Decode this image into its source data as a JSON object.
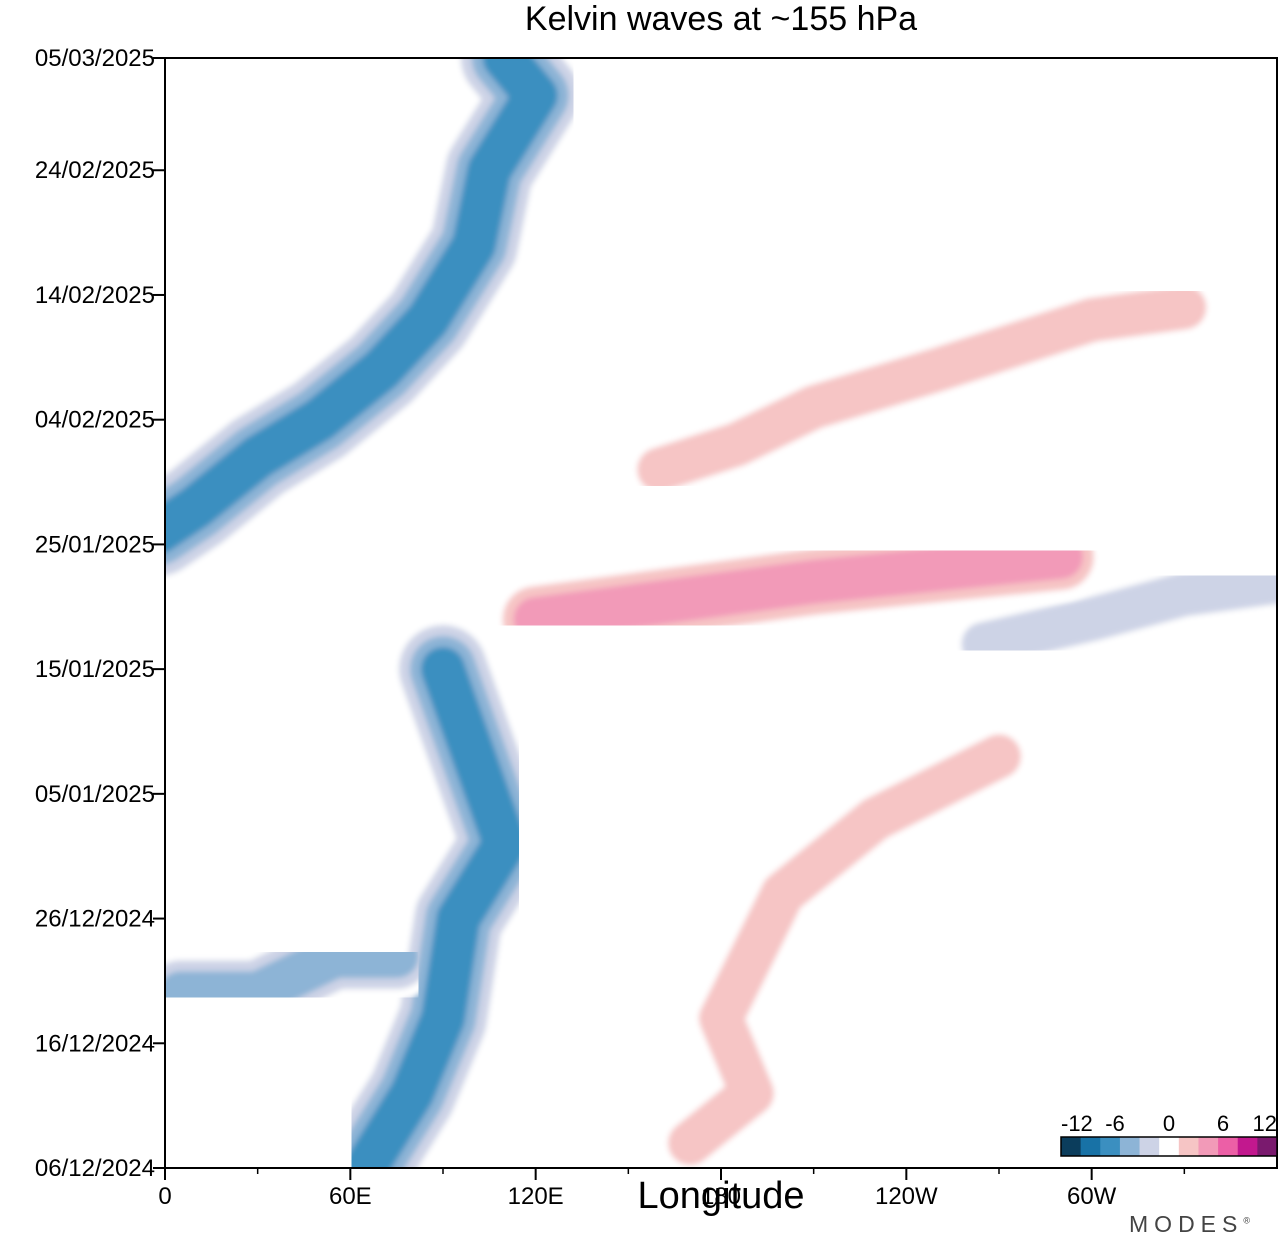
{
  "chart_data": {
    "type": "heatmap",
    "title": "Kelvin waves at ~155 hPa",
    "xlabel": "Longitude",
    "ylabel": "",
    "x_ticks": [
      "0",
      "60E",
      "120E",
      "180",
      "120W",
      "60W"
    ],
    "x_tick_values": [
      0,
      60,
      120,
      180,
      240,
      300
    ],
    "xlim": [
      0,
      360
    ],
    "y_ticks": [
      "05/03/2025",
      "24/02/2025",
      "14/02/2025",
      "04/02/2025",
      "25/01/2025",
      "15/01/2025",
      "05/01/2025",
      "26/12/2024",
      "16/12/2024",
      "06/12/2024"
    ],
    "y_tick_days": [
      89,
      80,
      70,
      60,
      50,
      40,
      30,
      20,
      10,
      0
    ],
    "ylim_days": [
      0,
      89
    ],
    "colorbar": {
      "tick_labels": [
        "-12",
        "-6",
        "0",
        "6",
        "12"
      ],
      "tick_values": [
        -12,
        -6,
        0,
        6,
        12
      ],
      "levels": [
        -12,
        -10,
        -8,
        -6,
        -4,
        -2,
        2,
        4,
        6,
        8,
        10,
        12
      ],
      "colors": [
        "#0b3d5c",
        "#1872a6",
        "#3b8fc0",
        "#8db4d6",
        "#cdd3e6",
        "#ffffff",
        "#f6c5c5",
        "#f29ab8",
        "#ec5fa6",
        "#c2188e",
        "#7a1a6e"
      ]
    },
    "features": [
      {
        "name": "negative",
        "value": -8,
        "points": [
          [
            -2,
            51
          ],
          [
            10,
            53
          ],
          [
            30,
            57
          ],
          [
            50,
            60
          ],
          [
            70,
            64
          ],
          [
            85,
            68
          ],
          [
            100,
            74
          ],
          [
            105,
            80
          ],
          [
            120,
            86
          ],
          [
            110,
            89
          ]
        ]
      },
      {
        "name": "negative",
        "value": -8,
        "points": [
          [
            65,
            0
          ],
          [
            80,
            6
          ],
          [
            90,
            12
          ],
          [
            95,
            20
          ],
          [
            110,
            26
          ],
          [
            100,
            33
          ],
          [
            90,
            40
          ]
        ]
      },
      {
        "name": "negative",
        "value": -6,
        "points": [
          [
            5,
            14
          ],
          [
            30,
            14
          ],
          [
            55,
            17
          ],
          [
            75,
            17
          ]
        ]
      },
      {
        "name": "negative",
        "value": -4,
        "points": [
          [
            265,
            42
          ],
          [
            300,
            44
          ],
          [
            330,
            46
          ],
          [
            360,
            47
          ]
        ]
      },
      {
        "name": "positive",
        "value": 6,
        "points": [
          [
            120,
            44
          ],
          [
            150,
            45
          ],
          [
            180,
            46
          ],
          [
            210,
            47
          ],
          [
            250,
            48
          ],
          [
            290,
            49
          ]
        ]
      },
      {
        "name": "positive",
        "value": 4,
        "points": [
          [
            160,
            56
          ],
          [
            185,
            58
          ],
          [
            210,
            61
          ],
          [
            250,
            64
          ],
          [
            300,
            68
          ],
          [
            330,
            69
          ]
        ]
      },
      {
        "name": "positive",
        "value": 4,
        "points": [
          [
            170,
            2
          ],
          [
            190,
            6
          ],
          [
            180,
            12
          ],
          [
            200,
            22
          ],
          [
            230,
            28
          ],
          [
            270,
            33
          ]
        ]
      }
    ]
  },
  "brand": {
    "name": "MODES",
    "mark": "®"
  }
}
